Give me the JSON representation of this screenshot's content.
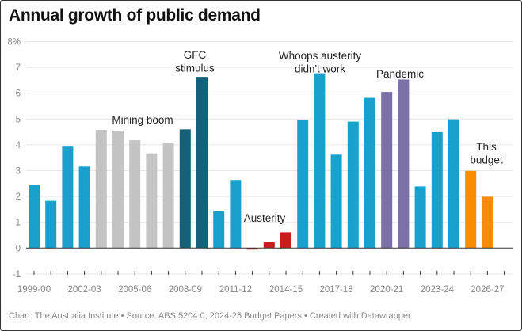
{
  "chart_data": {
    "type": "bar",
    "title": "Annual growth of public demand",
    "ylabel": "",
    "xlabel": "",
    "ylim": [
      -1,
      8
    ],
    "y_ticks": [
      "8%",
      "7",
      "6",
      "5",
      "4",
      "3",
      "2",
      "1",
      "0",
      "-1"
    ],
    "y_tick_values": [
      8,
      7,
      6,
      5,
      4,
      3,
      2,
      1,
      0,
      -1
    ],
    "grid": true,
    "categories": [
      "1999-00",
      "2000-01",
      "2001-02",
      "2002-03",
      "2003-04",
      "2004-05",
      "2005-06",
      "2006-07",
      "2007-08",
      "2008-09",
      "2009-10",
      "2010-11",
      "2011-12",
      "2012-13",
      "2013-14",
      "2014-15",
      "2015-16",
      "2016-17",
      "2017-18",
      "2018-19",
      "2019-20",
      "2020-21",
      "2021-22",
      "2022-23",
      "2023-24",
      "2024-25",
      "2025-26",
      "2026-27"
    ],
    "x_tick_labels": [
      "1999-00",
      "2002-03",
      "2005-06",
      "2008-09",
      "2011-12",
      "2014-15",
      "2017-18",
      "2020-21",
      "2023-24",
      "2026-27"
    ],
    "values": [
      2.45,
      1.83,
      3.93,
      3.16,
      4.58,
      4.55,
      4.18,
      3.67,
      4.09,
      4.6,
      6.63,
      1.45,
      2.64,
      -0.06,
      0.25,
      0.61,
      4.96,
      6.77,
      3.62,
      4.9,
      5.82,
      6.05,
      6.53,
      2.39,
      4.49,
      4.99,
      2.99,
      1.99
    ],
    "groups": [
      "default",
      "default",
      "default",
      "default",
      "mining",
      "mining",
      "mining",
      "mining",
      "mining",
      "gfc",
      "gfc",
      "default",
      "default",
      "austerity",
      "austerity",
      "austerity",
      "default",
      "default",
      "default",
      "default",
      "default",
      "pandemic",
      "pandemic",
      "default",
      "default",
      "default",
      "budget",
      "budget"
    ],
    "colors": {
      "default": "#18a1cd",
      "mining": "#c4c4c4",
      "gfc": "#15607a",
      "austerity": "#c71e1d",
      "pandemic": "#7c71a6",
      "budget": "#fa8c00"
    },
    "annotations": [
      {
        "text": [
          "Mining boom"
        ]
      },
      {
        "text": [
          "GFC",
          "stimulus"
        ]
      },
      {
        "text": [
          "Austerity"
        ]
      },
      {
        "text": [
          "Whoops austerity",
          "didn't work"
        ]
      },
      {
        "text": [
          "Pandemic"
        ]
      },
      {
        "text": [
          "This",
          "budget"
        ]
      }
    ]
  },
  "footer": "Chart: The Australia Institute • Source: ABS 5204.0, 2024-25 Budget Papers • Created with Datawrapper"
}
